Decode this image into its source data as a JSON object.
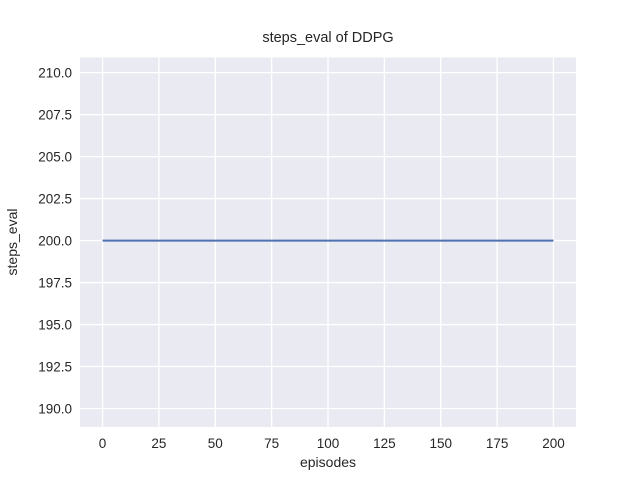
{
  "chart_data": {
    "type": "line",
    "title": "steps_eval of DDPG",
    "xlabel": "episodes",
    "ylabel": "steps_eval",
    "x": [
      0,
      200
    ],
    "series": [
      {
        "name": "steps_eval",
        "y": [
          200,
          200
        ],
        "color": "#4c72b0"
      }
    ],
    "xlim": [
      -10,
      210
    ],
    "ylim": [
      188.9,
      210.9
    ],
    "xticks": {
      "values": [
        0,
        25,
        50,
        75,
        100,
        125,
        150,
        175,
        200
      ],
      "labels": [
        "0",
        "25",
        "50",
        "75",
        "100",
        "125",
        "150",
        "175",
        "200"
      ]
    },
    "yticks": {
      "values": [
        190,
        192.5,
        195,
        197.5,
        200,
        202.5,
        205,
        207.5,
        210
      ],
      "labels": [
        "190.0",
        "192.5",
        "195.0",
        "197.5",
        "200.0",
        "202.5",
        "205.0",
        "207.5",
        "210.0"
      ]
    },
    "grid": true,
    "legend": null,
    "colors": {
      "line": "#4c72b0",
      "plot_background": "#eaeaf2",
      "grid": "#ffffff",
      "text": "#262626"
    }
  }
}
